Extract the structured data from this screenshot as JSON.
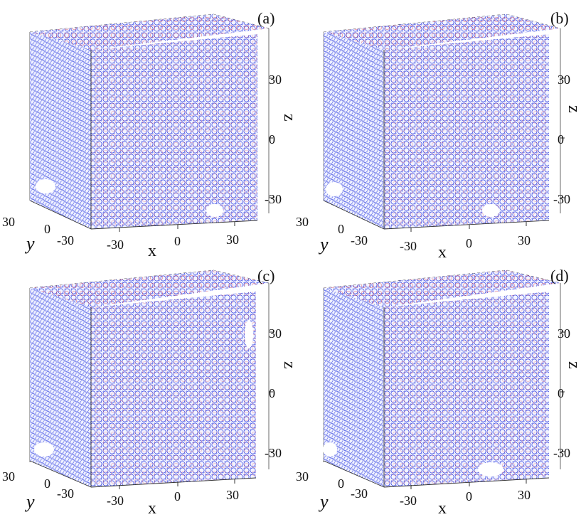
{
  "figure": {
    "panels": [
      {
        "id": "a",
        "label": "(a)"
      },
      {
        "id": "b",
        "label": "(b)"
      },
      {
        "id": "c",
        "label": "(c)"
      },
      {
        "id": "d",
        "label": "(d)"
      }
    ],
    "axis_labels": {
      "x": "x",
      "y": "y",
      "z": "z"
    },
    "ticks": {
      "x": [
        "-30",
        "0",
        "30"
      ],
      "y": [
        "30",
        "0",
        "-30"
      ],
      "z": [
        "30",
        "0",
        "-30"
      ]
    },
    "colors": {
      "particle_primary": "#2f3fe0",
      "particle_accent": "#e0303a",
      "box_edges": "#333333"
    }
  }
}
